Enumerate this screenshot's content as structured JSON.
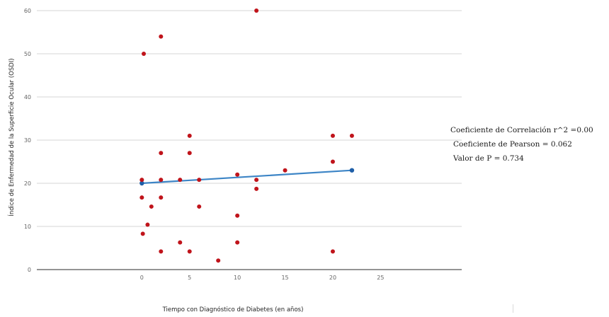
{
  "chart_data": {
    "type": "scatter",
    "title": "",
    "xlabel": "Tiempo con Diagnóstico de Diabetes (en años)",
    "ylabel": "Índice de Enfermedad de la Superficie Ocular (OSDI)",
    "xlim": [
      -11,
      33.5
    ],
    "ylim": [
      0,
      60
    ],
    "x_ticks": [
      0,
      5,
      10,
      15,
      20,
      25
    ],
    "y_ticks": [
      0,
      10,
      20,
      30,
      40,
      50,
      60
    ],
    "grid": "horizontal",
    "points": [
      {
        "x": 0.2,
        "y": 50
      },
      {
        "x": 2,
        "y": 54
      },
      {
        "x": 12,
        "y": 60
      },
      {
        "x": 5,
        "y": 31
      },
      {
        "x": 20,
        "y": 31
      },
      {
        "x": 22,
        "y": 31
      },
      {
        "x": 2,
        "y": 27
      },
      {
        "x": 5,
        "y": 27
      },
      {
        "x": 20,
        "y": 25
      },
      {
        "x": 15,
        "y": 23
      },
      {
        "x": 10,
        "y": 22
      },
      {
        "x": 0,
        "y": 20.8
      },
      {
        "x": 2,
        "y": 20.8
      },
      {
        "x": 4,
        "y": 20.8
      },
      {
        "x": 6,
        "y": 20.8
      },
      {
        "x": 12,
        "y": 20.8
      },
      {
        "x": 12,
        "y": 18.7
      },
      {
        "x": 0,
        "y": 16.7
      },
      {
        "x": 2,
        "y": 16.7
      },
      {
        "x": 1,
        "y": 14.6
      },
      {
        "x": 6,
        "y": 14.6
      },
      {
        "x": 10,
        "y": 12.5
      },
      {
        "x": 0.6,
        "y": 10.4
      },
      {
        "x": 0.1,
        "y": 8.3
      },
      {
        "x": 4,
        "y": 6.3
      },
      {
        "x": 10,
        "y": 6.3
      },
      {
        "x": 2,
        "y": 4.2
      },
      {
        "x": 5,
        "y": 4.2
      },
      {
        "x": 20,
        "y": 4.2
      },
      {
        "x": 8,
        "y": 2.1
      }
    ],
    "trendline": {
      "x": [
        0,
        22
      ],
      "y": [
        20,
        23
      ]
    },
    "point_color": "#c0141b",
    "trend_color": "#3d85c6",
    "trend_end_color": "#1f5fa8",
    "grid_color": "#c8c8c8"
  },
  "stats": {
    "r2": "Coeficiente de Correlación r^2 =0.00",
    "pearson": "Coeficiente de Pearson = 0.062",
    "pvalue": "Valor de P = 0.734"
  }
}
